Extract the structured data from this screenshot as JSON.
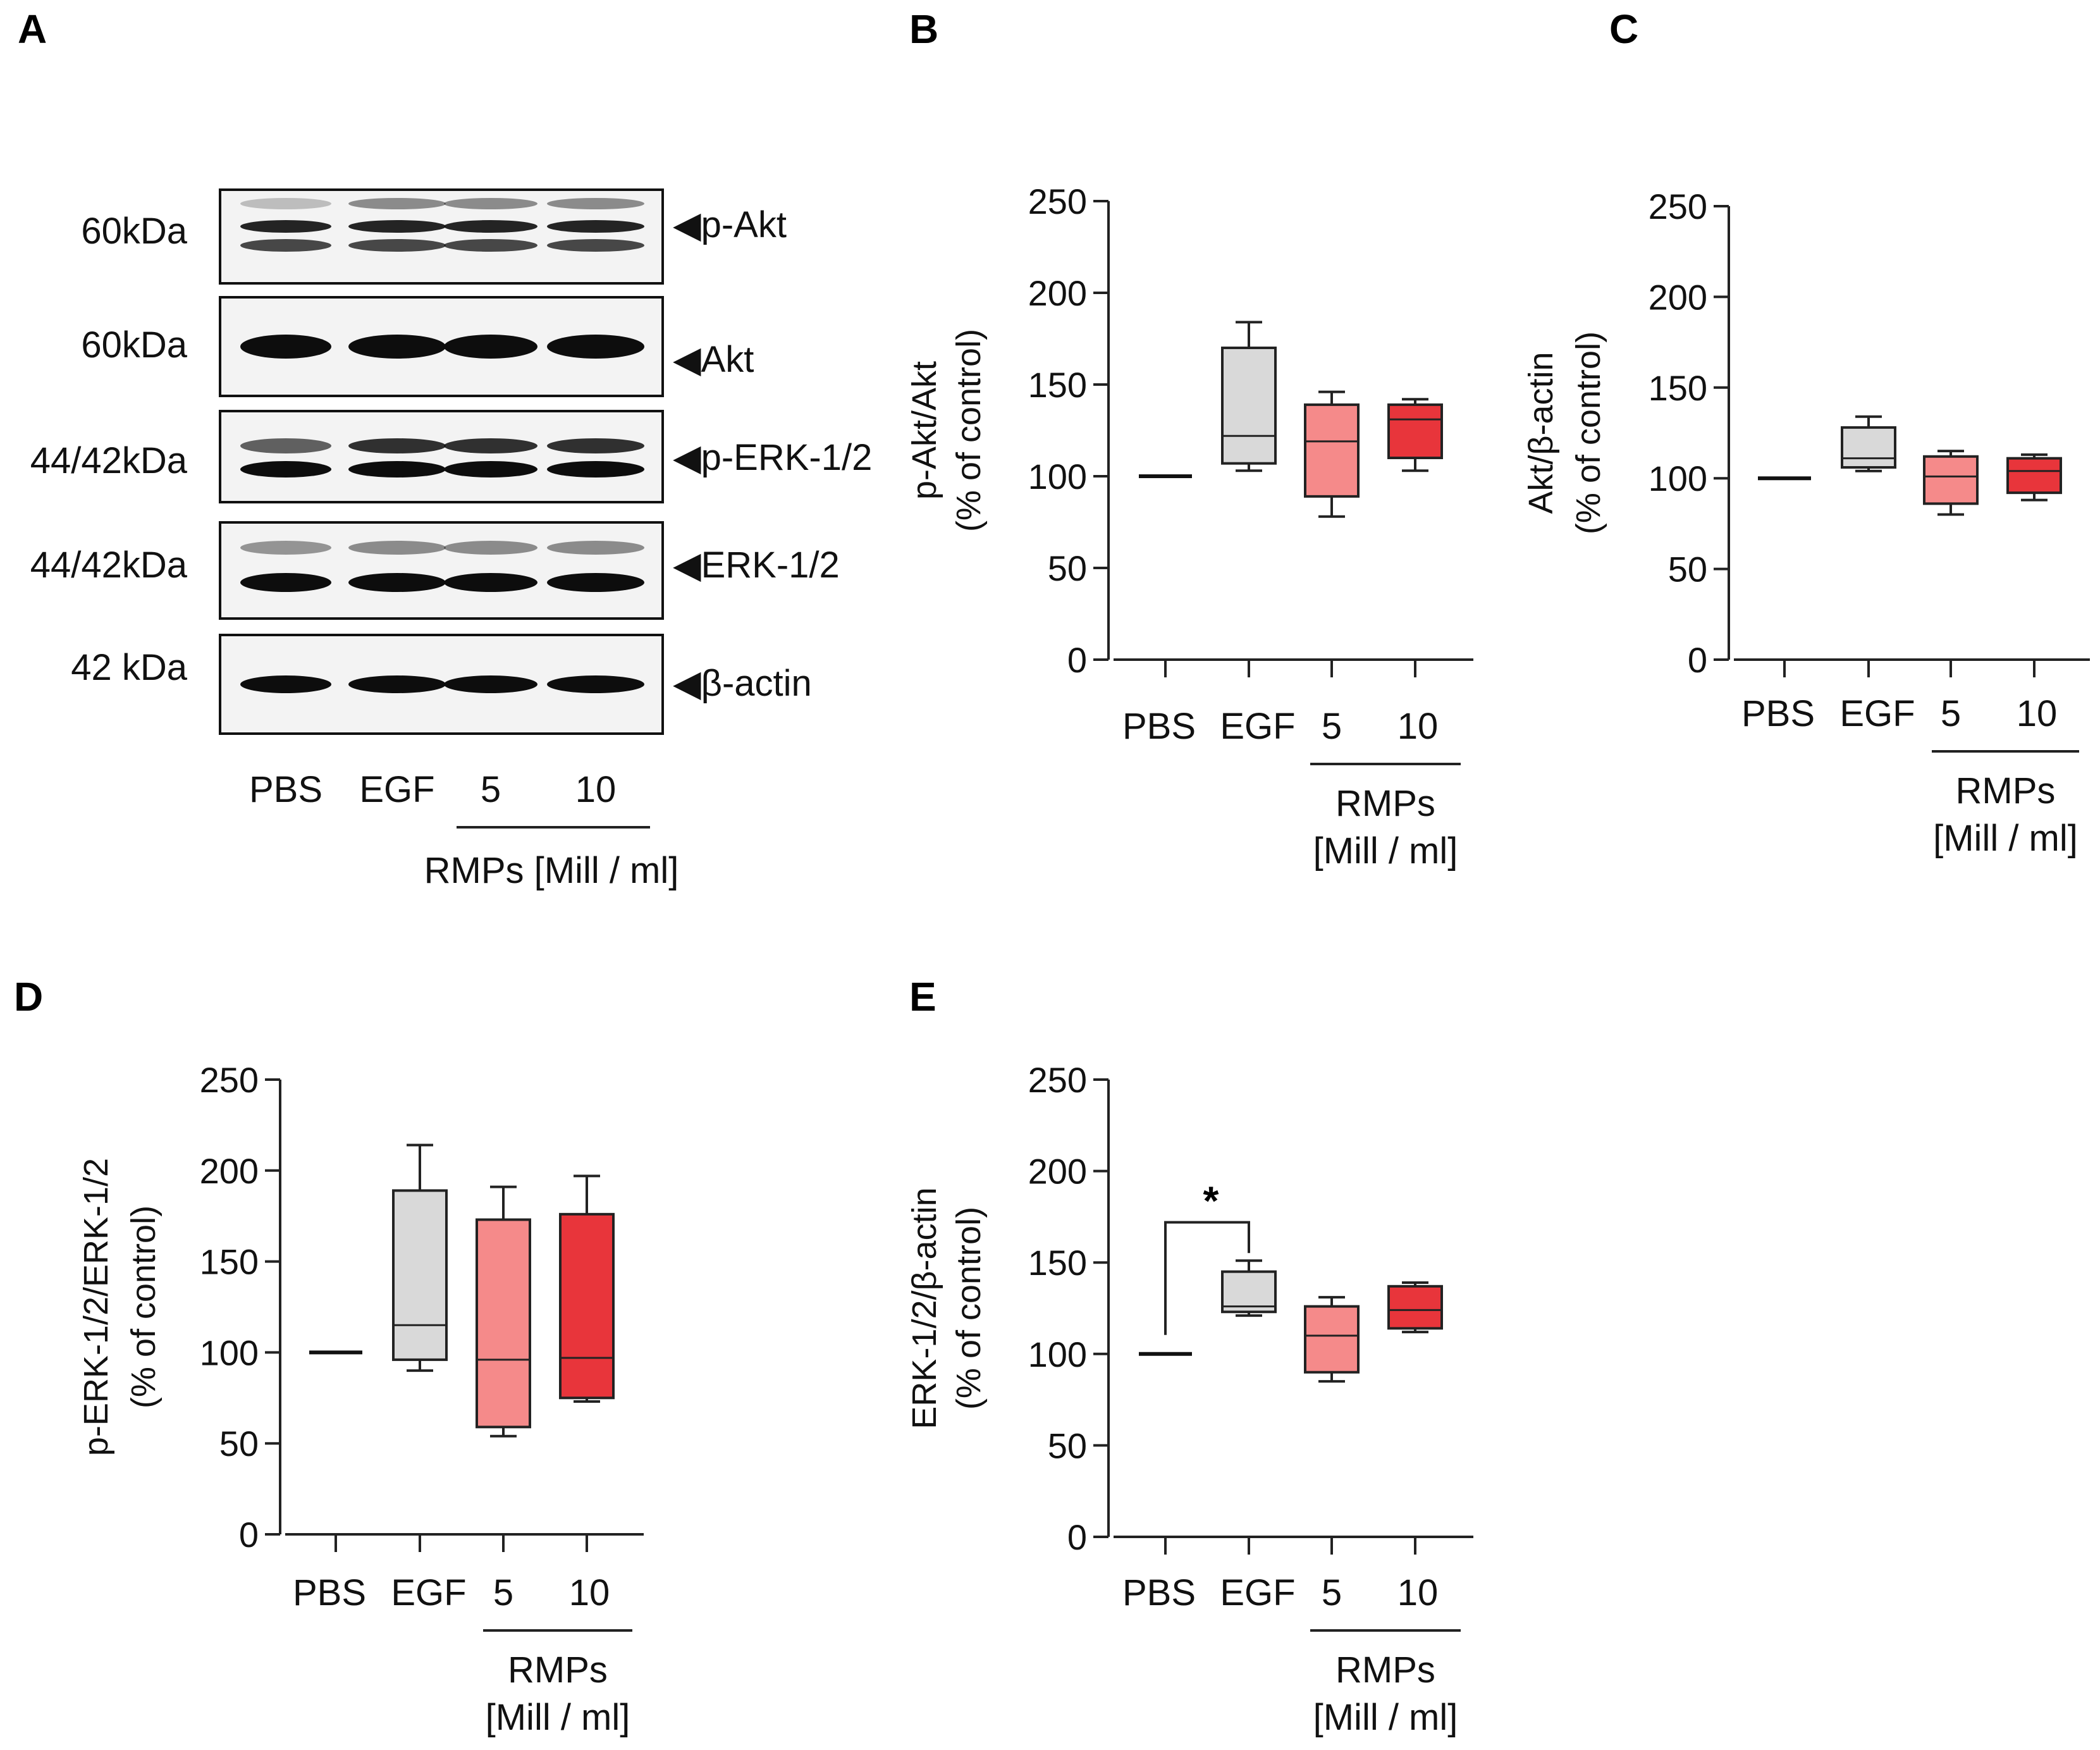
{
  "panels": {
    "A": "A",
    "B": "B",
    "C": "C",
    "D": "D",
    "E": "E"
  },
  "blot": {
    "rows": [
      {
        "mw": "60kDa",
        "target": "◀p-Akt",
        "ratio": 0.5
      },
      {
        "mw": "60kDa",
        "target": "◀Akt",
        "ratio": 1.0
      },
      {
        "mw": "44/42kDa",
        "target": "◀p-ERK-1/2",
        "ratio": 0.75
      },
      {
        "mw": "44/42kDa",
        "target": "◀ERK-1/2",
        "ratio": 0.9
      },
      {
        "mw": "42 kDa",
        "target": "◀β-actin",
        "ratio": 1.0
      }
    ],
    "lanes": [
      "PBS",
      "EGF",
      "5",
      "10"
    ],
    "group_label": "RMPs [Mill / ml]"
  },
  "colors": {
    "pbs": "#111111",
    "egf": "#d9d9d9",
    "rmp5": "#f58a8a",
    "rmp10": "#e8353b",
    "line": "#222222"
  },
  "chart_data": [
    {
      "id": "B",
      "type": "box",
      "ylabel": [
        "p-Akt/Akt",
        "(% of control)"
      ],
      "ylim": [
        0,
        250
      ],
      "yticks": [
        0,
        50,
        100,
        150,
        200,
        250
      ],
      "categories": [
        "PBS",
        "EGF",
        "5",
        "10"
      ],
      "group_label": [
        "RMPs",
        "[Mill / ml]"
      ],
      "boxes": [
        {
          "min": 100,
          "q1": 100,
          "median": 100,
          "q3": 100,
          "max": 100
        },
        {
          "min": 103,
          "q1": 107,
          "median": 122,
          "q3": 170,
          "max": 184
        },
        {
          "min": 78,
          "q1": 89,
          "median": 119,
          "q3": 139,
          "max": 146
        },
        {
          "min": 103,
          "q1": 110,
          "median": 131,
          "q3": 139,
          "max": 142
        }
      ]
    },
    {
      "id": "C",
      "type": "box",
      "ylabel": [
        "Akt/β-actin",
        "(% of control)"
      ],
      "ylim": [
        0,
        250
      ],
      "yticks": [
        0,
        50,
        100,
        150,
        200,
        250
      ],
      "categories": [
        "PBS",
        "EGF",
        "5",
        "10"
      ],
      "group_label": [
        "RMPs",
        "[Mill / ml]"
      ],
      "boxes": [
        {
          "min": 100,
          "q1": 100,
          "median": 100,
          "q3": 100,
          "max": 100
        },
        {
          "min": 104,
          "q1": 106,
          "median": 111,
          "q3": 128,
          "max": 134
        },
        {
          "min": 80,
          "q1": 86,
          "median": 101,
          "q3": 112,
          "max": 115
        },
        {
          "min": 88,
          "q1": 92,
          "median": 104,
          "q3": 111,
          "max": 113
        }
      ]
    },
    {
      "id": "D",
      "type": "box",
      "ylabel": [
        "p-ERK-1/2/ERK-1/2",
        "(% of control)"
      ],
      "ylim": [
        0,
        250
      ],
      "yticks": [
        0,
        50,
        100,
        150,
        200,
        250
      ],
      "categories": [
        "PBS",
        "EGF",
        "5",
        "10"
      ],
      "group_label": [
        "RMPs",
        "[Mill / ml]"
      ],
      "boxes": [
        {
          "min": 100,
          "q1": 100,
          "median": 100,
          "q3": 100,
          "max": 100
        },
        {
          "min": 90,
          "q1": 96,
          "median": 115,
          "q3": 189,
          "max": 214
        },
        {
          "min": 54,
          "q1": 59,
          "median": 96,
          "q3": 173,
          "max": 191
        },
        {
          "min": 73,
          "q1": 75,
          "median": 97,
          "q3": 176,
          "max": 197
        }
      ]
    },
    {
      "id": "E",
      "type": "box",
      "ylabel": [
        "ERK-1/2/β-actin",
        "(% of control)"
      ],
      "ylim": [
        0,
        250
      ],
      "yticks": [
        0,
        50,
        100,
        150,
        200,
        250
      ],
      "categories": [
        "PBS",
        "EGF",
        "5",
        "10"
      ],
      "group_label": [
        "RMPs",
        "[Mill / ml]"
      ],
      "significance": {
        "from": 0,
        "to": 1,
        "label": "*"
      },
      "boxes": [
        {
          "min": 100,
          "q1": 100,
          "median": 100,
          "q3": 100,
          "max": 100
        },
        {
          "min": 121,
          "q1": 123,
          "median": 126,
          "q3": 145,
          "max": 151
        },
        {
          "min": 85,
          "q1": 90,
          "median": 110,
          "q3": 126,
          "max": 131
        },
        {
          "min": 112,
          "q1": 114,
          "median": 124,
          "q3": 137,
          "max": 139
        }
      ]
    }
  ]
}
